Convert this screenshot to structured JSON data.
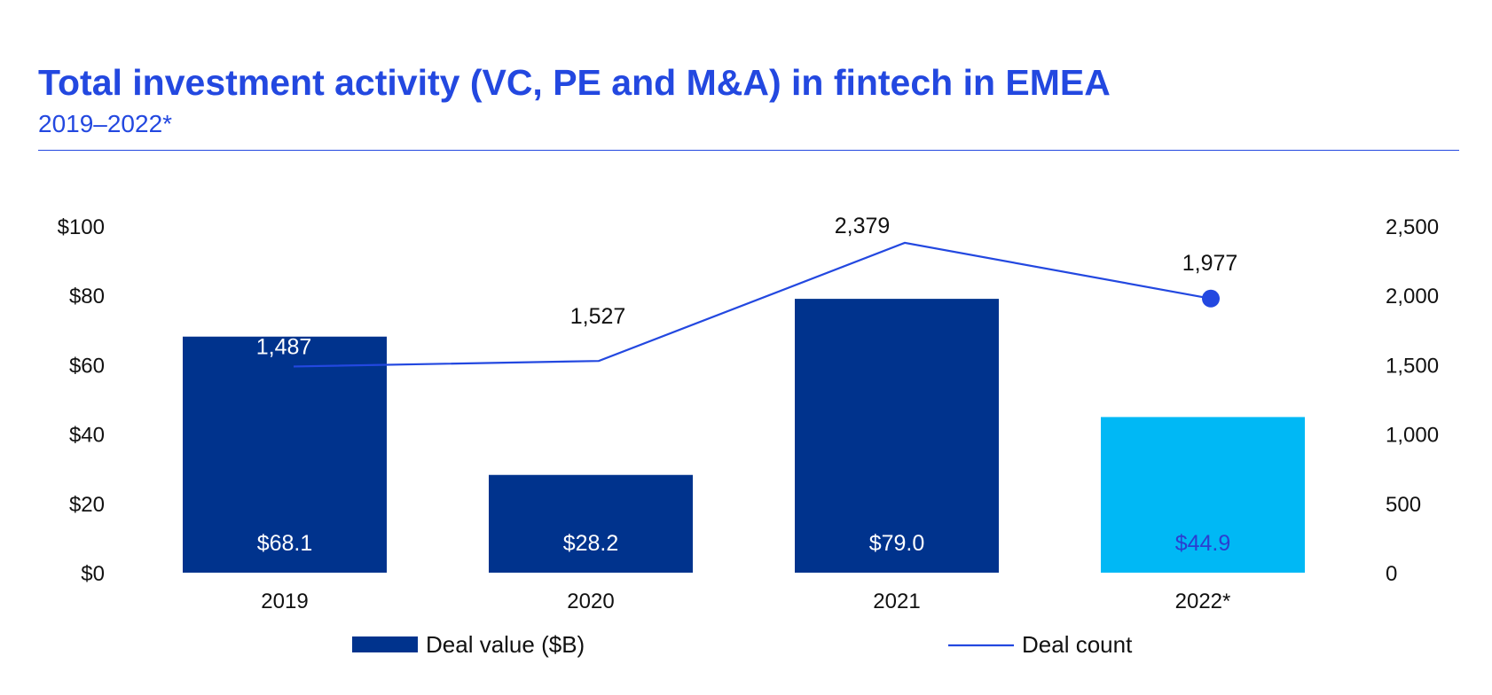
{
  "chart_data": {
    "type": "bar+line",
    "title": "Total investment activity (VC, PE and M&A) in fintech in EMEA",
    "subtitle": "2019–2022*",
    "categories": [
      "2019",
      "2020",
      "2021",
      "2022*"
    ],
    "series": [
      {
        "name": "Deal value ($B)",
        "type": "bar",
        "axis": "left",
        "values": [
          68.1,
          28.2,
          79.0,
          44.9
        ],
        "value_labels": [
          "$68.1",
          "$28.2",
          "$79.0",
          "$44.9"
        ],
        "colors": [
          "#00338d",
          "#00338d",
          "#00338d",
          "#00b8f5"
        ],
        "label_colors": [
          "#ffffff",
          "#ffffff",
          "#ffffff",
          "#2b3ed0"
        ]
      },
      {
        "name": "Deal count",
        "type": "line",
        "axis": "right",
        "values": [
          1487,
          1527,
          2379,
          1977
        ],
        "value_labels": [
          "1,487",
          "1,527",
          "2,379",
          "1,977"
        ],
        "color": "#2348e0",
        "label_colors": [
          "#ffffff",
          "#111111",
          "#111111",
          "#111111"
        ]
      }
    ],
    "y_left": {
      "ylim": [
        0,
        100
      ],
      "ticks": [
        "$0",
        "$20",
        "$40",
        "$60",
        "$80",
        "$100"
      ]
    },
    "y_right": {
      "ylim": [
        0,
        2500
      ],
      "ticks": [
        "0",
        "500",
        "1,000",
        "1,500",
        "2,000",
        "2,500"
      ]
    },
    "legend": [
      {
        "label": "Deal value ($B)",
        "marker": "bar",
        "color": "#00338d"
      },
      {
        "label": "Deal count",
        "marker": "line",
        "color": "#2348e0"
      }
    ],
    "grid": false,
    "legend_position": "bottom"
  }
}
